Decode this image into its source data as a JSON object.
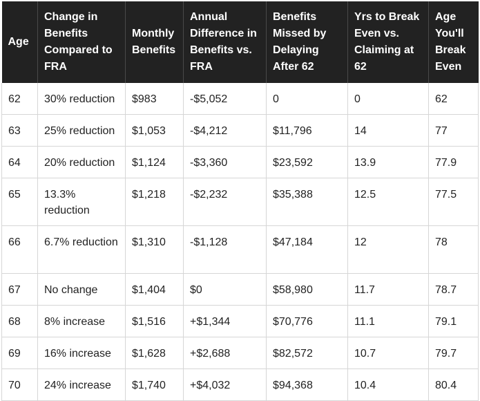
{
  "table": {
    "headers": [
      "Age",
      "Change in Benefits Compared to FRA",
      "Monthly Benefits",
      "Annual Difference in Benefits vs. FRA",
      "Benefits Missed by Delaying After 62",
      "Yrs to Break Even vs. Claiming at 62",
      "Age You'll Break Even"
    ],
    "rows": [
      [
        "62",
        "30% reduction",
        "$983",
        "-$5,052",
        "0",
        "0",
        "62"
      ],
      [
        "63",
        "25% reduction",
        "$1,053",
        "-$4,212",
        "$11,796",
        "14",
        "77"
      ],
      [
        "64",
        "20% reduction",
        "$1,124",
        "-$3,360",
        "$23,592",
        "13.9",
        "77.9"
      ],
      [
        "65",
        "13.3% reduction",
        "$1,218",
        "-$2,232",
        "$35,388",
        "12.5",
        "77.5"
      ],
      [
        "66",
        "6.7% reduction",
        "$1,310",
        "-$1,128",
        "$47,184",
        "12",
        "78"
      ],
      [
        "67",
        "No change",
        "$1,404",
        "$0",
        "$58,980",
        "11.7",
        "78.7"
      ],
      [
        "68",
        "8% increase",
        "$1,516",
        "+$1,344",
        "$70,776",
        "11.1",
        "79.1"
      ],
      [
        "69",
        "16% increase",
        "$1,628",
        "+$2,688",
        "$82,572",
        "10.7",
        "79.7"
      ],
      [
        "70",
        "24% increase",
        "$1,740",
        "+$4,032",
        "$94,368",
        "10.4",
        "80.4"
      ]
    ]
  }
}
